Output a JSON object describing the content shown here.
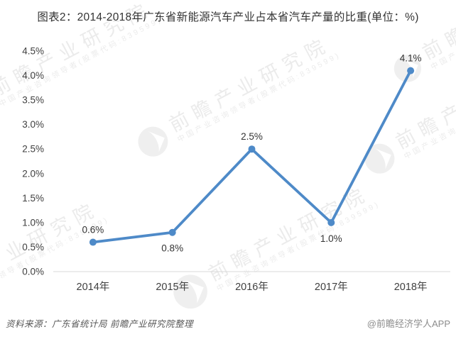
{
  "title": "图表2：2014-2018年广东省新能源汽车产业占本省汽车产量的比重(单位：%)",
  "chart_data": {
    "type": "line",
    "title": "图表2：2014-2018年广东省新能源汽车产业占本省汽车产量的比重(单位：%)",
    "xlabel": "",
    "ylabel": "",
    "categories": [
      "2014年",
      "2015年",
      "2016年",
      "2017年",
      "2018年"
    ],
    "values": [
      0.6,
      0.8,
      2.5,
      1.0,
      4.1
    ],
    "point_labels": [
      "0.6%",
      "0.8%",
      "2.5%",
      "1.0%",
      "4.1%"
    ],
    "label_positions": [
      "above",
      "below",
      "above",
      "below",
      "above"
    ],
    "yticks": [
      "0.0%",
      "0.5%",
      "1.0%",
      "1.5%",
      "2.0%",
      "2.5%",
      "3.0%",
      "3.5%",
      "4.0%",
      "4.5%"
    ],
    "ylim": [
      0,
      4.5
    ],
    "grid": false,
    "legend": "none",
    "line_color": "#4e8ac8",
    "marker_color": "#4e8ac8",
    "axis_color": "#d9d9d9",
    "tick_label_color": "#404040",
    "data_label_color": "#333333"
  },
  "footer": {
    "source": "资料来源：广东省统计局 前瞻产业研究院整理",
    "credit": "@前瞻经济学人APP"
  },
  "watermark": {
    "brand": "前瞻产业研究院",
    "tagline": "中国产业咨询领导者(股票代码:839599)"
  }
}
